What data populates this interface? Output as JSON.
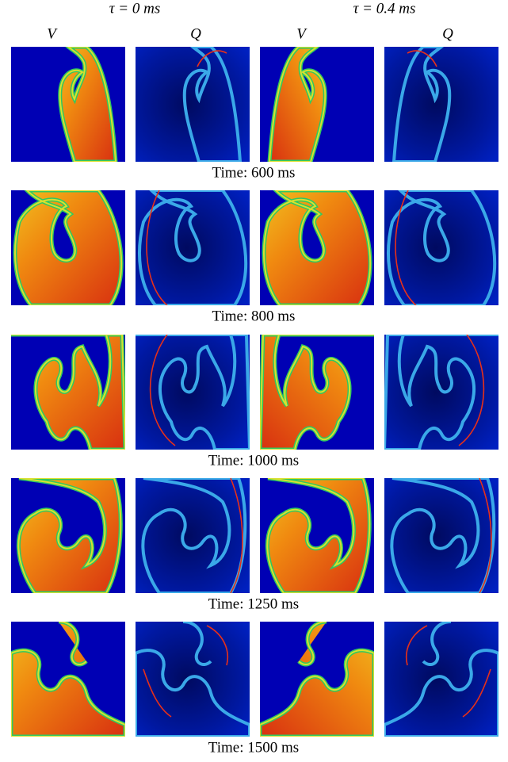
{
  "column_headers": [
    "τ = 0 ms",
    "τ = 0.4 ms"
  ],
  "panel_labels": [
    "V",
    "Q",
    "V",
    "Q"
  ],
  "row_captions": [
    "Time: 600 ms",
    "Time: 800 ms",
    "Time: 1000 ms",
    "Time: 1250 ms",
    "Time: 1500 ms"
  ]
}
